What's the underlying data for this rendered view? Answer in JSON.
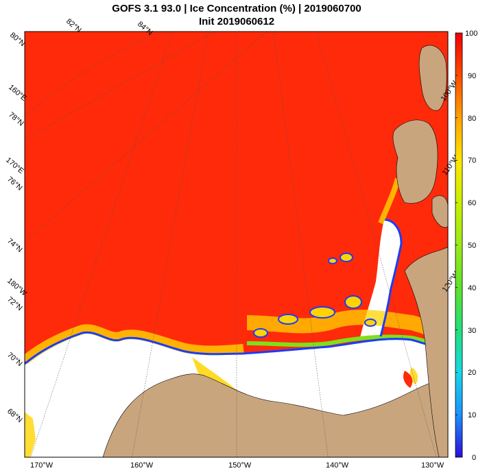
{
  "title_line1": "GOFS 3.1 93.0  |  Ice Concentration (%)  |  2019060700",
  "title_line2": "Init 2019060612",
  "lat_labels": [
    "80°N",
    "78°N",
    "76°N",
    "74°N",
    "72°N",
    "70°N",
    "68°N"
  ],
  "top_lon_labels": [
    "82°N",
    "84°N"
  ],
  "side_lon_labels": [
    "160°E",
    "170°E",
    "180°W",
    "100°W",
    "110°W",
    "120°W"
  ],
  "bottom_lon_labels": [
    "170°W",
    "160°W",
    "150°W",
    "140°W",
    "130°W"
  ],
  "colorbar": {
    "ticks": [
      "100",
      "90",
      "80",
      "70",
      "60",
      "50",
      "40",
      "30",
      "20",
      "10",
      "0"
    ],
    "min": 0,
    "max": 100,
    "colors": [
      "#2a0dd8",
      "#1e90ff",
      "#17d6e6",
      "#22e07a",
      "#5fe22a",
      "#c8f000",
      "#ffe600",
      "#ffa200",
      "#ff5a00",
      "#ff1e00",
      "#f00000"
    ]
  },
  "colors": {
    "ice_high": "#ff2a0a",
    "ice_edge_mid": "#ffd400",
    "ice_edge_low": "#1a3cff",
    "open_water": "#ffffff",
    "land": "#c9a57e",
    "grid": "#555555"
  }
}
